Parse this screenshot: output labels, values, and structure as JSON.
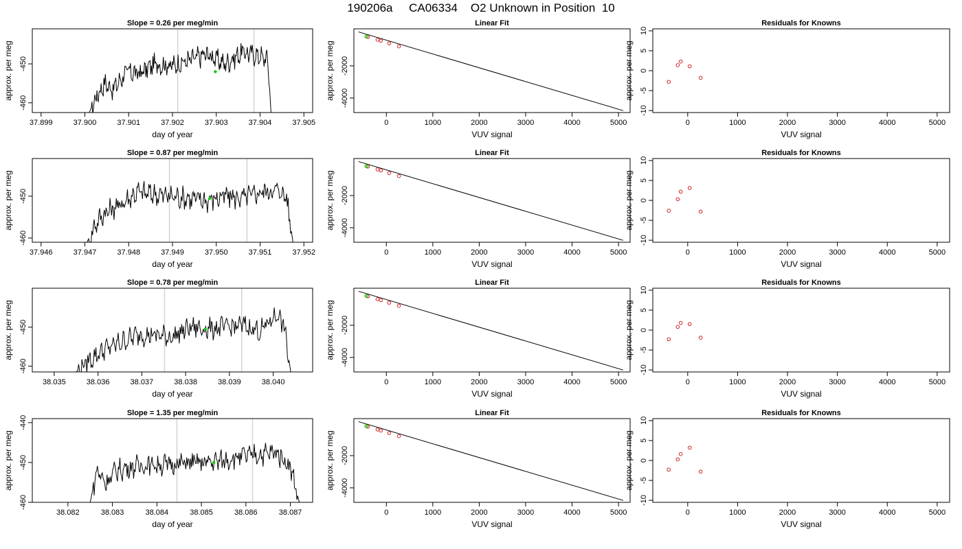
{
  "page_title": "190206a     CA06334    O2 Unknown in Position  10",
  "colors": {
    "trace": "#000000",
    "gridline": "#d3d3d3",
    "unknown_point": "#00cc00",
    "known_point": "#cc2222"
  },
  "chart_data": [
    {
      "type": "line",
      "title": "Slope =  0.26  per meg/min",
      "xlabel": "day of year",
      "ylabel": "approx. per meg",
      "xlim": [
        37.8988,
        37.9052
      ],
      "ylim": [
        -462.5,
        -441.0
      ],
      "xticks": [
        37.899,
        37.9,
        37.901,
        37.902,
        37.903,
        37.904,
        37.905
      ],
      "xtick_labels": [
        "37.899",
        "37.900",
        "37.901",
        "37.902",
        "37.903",
        "37.904",
        "37.905"
      ],
      "yticks": [
        -460,
        -450
      ],
      "ytick_labels": [
        "-460",
        "-450"
      ],
      "vlines": [
        37.90212,
        37.90386
      ],
      "series": [
        {
          "t": [
            37.9001,
            37.90028,
            37.90045,
            37.90065,
            37.90095,
            37.90125,
            37.9016,
            37.902,
            37.9024,
            37.9028,
            37.9032,
            37.9036,
            37.904,
            37.90418,
            37.90425
          ],
          "y": [
            -462.5,
            -458.0,
            -455.0,
            -456.5,
            -452.0,
            -452.5,
            -450.0,
            -450.5,
            -449.0,
            -447.5,
            -450.0,
            -447.0,
            -448.0,
            -449.0,
            -462.5
          ]
        }
      ],
      "unknown_point": {
        "x": 37.90298,
        "y": -452.0
      }
    },
    {
      "type": "line",
      "title": "Slope =  0.87  per meg/min",
      "xlabel": "day of year",
      "ylabel": "approx. per meg",
      "xlim": [
        37.9458,
        37.9522
      ],
      "ylim": [
        -461.0,
        -441.0
      ],
      "xticks": [
        37.946,
        37.947,
        37.948,
        37.949,
        37.95,
        37.951,
        37.952
      ],
      "xtick_labels": [
        "37.946",
        "37.947",
        "37.948",
        "37.949",
        "37.950",
        "37.951",
        "37.952"
      ],
      "yticks": [
        -460,
        -450
      ],
      "ytick_labels": [
        "-460",
        "-450"
      ],
      "vlines": [
        37.94893,
        37.9507
      ],
      "series": [
        {
          "t": [
            37.94705,
            37.94725,
            37.94745,
            37.9478,
            37.9482,
            37.9486,
            37.949,
            37.9494,
            37.9498,
            37.9502,
            37.9506,
            37.951,
            37.9514,
            37.9516,
            37.95175
          ],
          "y": [
            -461.0,
            -456.5,
            -454.0,
            -452.0,
            -449.0,
            -449.5,
            -450.0,
            -450.5,
            -451.0,
            -450.0,
            -450.5,
            -449.0,
            -448.5,
            -450.0,
            -461.0
          ]
        }
      ],
      "unknown_point": {
        "x": 37.94985,
        "y": -450.5
      }
    },
    {
      "type": "line",
      "title": "Slope =  0.78  per meg/min",
      "xlabel": "day of year",
      "ylabel": "approx. per meg",
      "xlim": [
        38.0345,
        38.0409
      ],
      "ylim": [
        -461.5,
        -440.0
      ],
      "xticks": [
        38.035,
        38.036,
        38.037,
        38.038,
        38.039,
        38.04
      ],
      "xtick_labels": [
        "38.035",
        "38.036",
        "38.037",
        "38.038",
        "38.039",
        "38.040"
      ],
      "yticks": [
        -460,
        -450
      ],
      "ytick_labels": [
        "-460",
        "-450"
      ],
      "vlines": [
        38.03752,
        38.03928
      ],
      "series": [
        {
          "t": [
            38.0355,
            38.0358,
            38.0361,
            38.0365,
            38.0369,
            38.0373,
            38.0377,
            38.0381,
            38.0385,
            38.0389,
            38.0393,
            38.0397,
            38.0401,
            38.04025,
            38.0404
          ],
          "y": [
            -461.5,
            -458.5,
            -456.0,
            -454.0,
            -452.0,
            -452.0,
            -452.5,
            -450.0,
            -450.5,
            -450.0,
            -449.5,
            -451.0,
            -446.5,
            -450.0,
            -461.5
          ]
        }
      ],
      "unknown_point": {
        "x": 38.03845,
        "y": -450.5
      }
    },
    {
      "type": "line",
      "title": "Slope =  1.35  per meg/min",
      "xlabel": "day of year",
      "ylabel": "approx. per meg",
      "xlim": [
        38.0812,
        38.0875
      ],
      "ylim": [
        -460.0,
        -439.0
      ],
      "xticks": [
        38.082,
        38.083,
        38.084,
        38.085,
        38.086,
        38.087
      ],
      "xtick_labels": [
        "38.082",
        "38.083",
        "38.084",
        "38.085",
        "38.086",
        "38.087"
      ],
      "yticks": [
        -460,
        -450,
        -440
      ],
      "ytick_labels": [
        "-460",
        "-450",
        "-440"
      ],
      "vlines": [
        38.08445,
        38.08615
      ],
      "series": [
        {
          "t": [
            38.0825,
            38.08265,
            38.08285,
            38.0831,
            38.0835,
            38.0839,
            38.0843,
            38.0847,
            38.0851,
            38.0855,
            38.0859,
            38.0863,
            38.0867,
            38.087,
            38.0872
          ],
          "y": [
            -460.0,
            -452.0,
            -455.0,
            -452.0,
            -451.0,
            -450.5,
            -450.5,
            -450.0,
            -450.0,
            -449.5,
            -448.5,
            -448.0,
            -447.5,
            -451.0,
            -460.0
          ]
        }
      ],
      "unknown_point": {
        "x": 38.08528,
        "y": -450.0
      }
    },
    {
      "type": "scatter",
      "title": "Linear Fit",
      "xlabel": "VUV signal",
      "ylabel": "approx. per meg",
      "xlim": [
        -700,
        5250
      ],
      "ylim": [
        -4900,
        300
      ],
      "xticks": [
        0,
        1000,
        2000,
        3000,
        4000,
        5000
      ],
      "xtick_labels": [
        "0",
        "1000",
        "2000",
        "3000",
        "4000",
        "5000"
      ],
      "yticks": [
        -4000,
        -2000
      ],
      "ytick_labels": [
        "-4000",
        "-2000"
      ],
      "fit_line": {
        "x": [
          -600,
          5100
        ],
        "y": [
          110,
          -4780
        ]
      },
      "known_points": {
        "x": [
          -400,
          -190,
          -120,
          60,
          270
        ],
        "y": [
          -200,
          -380,
          -440,
          -600,
          -790
        ]
      },
      "unknown_point": {
        "x": -430,
        "y": -170
      }
    },
    {
      "type": "scatter",
      "title": "Linear Fit",
      "xlabel": "VUV signal",
      "ylabel": "approx. per meg",
      "xlim": [
        -700,
        5250
      ],
      "ylim": [
        -4900,
        300
      ],
      "xticks": [
        0,
        1000,
        2000,
        3000,
        4000,
        5000
      ],
      "xtick_labels": [
        "0",
        "1000",
        "2000",
        "3000",
        "4000",
        "5000"
      ],
      "yticks": [
        -4000,
        -2000
      ],
      "ytick_labels": [
        "-4000",
        "-2000"
      ],
      "fit_line": {
        "x": [
          -600,
          5100
        ],
        "y": [
          110,
          -4780
        ]
      },
      "known_points": {
        "x": [
          -400,
          -190,
          -120,
          60,
          270
        ],
        "y": [
          -200,
          -380,
          -440,
          -600,
          -790
        ]
      },
      "unknown_point": {
        "x": -430,
        "y": -170
      }
    },
    {
      "type": "scatter",
      "title": "Linear Fit",
      "xlabel": "VUV signal",
      "ylabel": "approx. per meg",
      "xlim": [
        -700,
        5250
      ],
      "ylim": [
        -4900,
        300
      ],
      "xticks": [
        0,
        1000,
        2000,
        3000,
        4000,
        5000
      ],
      "xtick_labels": [
        "0",
        "1000",
        "2000",
        "3000",
        "4000",
        "5000"
      ],
      "yticks": [
        -4000,
        -2000
      ],
      "ytick_labels": [
        "-4000",
        "-2000"
      ],
      "fit_line": {
        "x": [
          -600,
          5100
        ],
        "y": [
          110,
          -4780
        ]
      },
      "known_points": {
        "x": [
          -400,
          -190,
          -120,
          60,
          270
        ],
        "y": [
          -200,
          -380,
          -440,
          -600,
          -790
        ]
      },
      "unknown_point": {
        "x": -430,
        "y": -170
      }
    },
    {
      "type": "scatter",
      "title": "Linear Fit",
      "xlabel": "VUV signal",
      "ylabel": "approx. per meg",
      "xlim": [
        -700,
        5250
      ],
      "ylim": [
        -4900,
        300
      ],
      "xticks": [
        0,
        1000,
        2000,
        3000,
        4000,
        5000
      ],
      "xtick_labels": [
        "0",
        "1000",
        "2000",
        "3000",
        "4000",
        "5000"
      ],
      "yticks": [
        -4000,
        -2000
      ],
      "ytick_labels": [
        "-4000",
        "-2000"
      ],
      "fit_line": {
        "x": [
          -600,
          5100
        ],
        "y": [
          110,
          -4780
        ]
      },
      "known_points": {
        "x": [
          -400,
          -190,
          -120,
          60,
          270
        ],
        "y": [
          -200,
          -380,
          -440,
          -600,
          -790
        ]
      },
      "unknown_point": {
        "x": -430,
        "y": -170
      }
    },
    {
      "type": "scatter",
      "title": "Residuals for Knowns",
      "xlabel": "VUV signal",
      "ylabel": "approx. per meg",
      "xlim": [
        -700,
        5250
      ],
      "ylim": [
        -10.5,
        10.5
      ],
      "xticks": [
        0,
        1000,
        2000,
        3000,
        4000,
        5000
      ],
      "xtick_labels": [
        "0",
        "1000",
        "2000",
        "3000",
        "4000",
        "5000"
      ],
      "yticks": [
        -10,
        -5,
        0,
        5,
        10
      ],
      "ytick_labels": [
        "-10",
        "-5",
        "0",
        "5",
        "10"
      ],
      "points": {
        "x": [
          -380,
          -200,
          -140,
          40,
          260
        ],
        "y": [
          -2.8,
          1.4,
          2.3,
          1.1,
          -1.8
        ]
      }
    },
    {
      "type": "scatter",
      "title": "Residuals for Knowns",
      "xlabel": "VUV signal",
      "ylabel": "approx. per meg",
      "xlim": [
        -700,
        5250
      ],
      "ylim": [
        -10.5,
        10.5
      ],
      "xticks": [
        0,
        1000,
        2000,
        3000,
        4000,
        5000
      ],
      "xtick_labels": [
        "0",
        "1000",
        "2000",
        "3000",
        "4000",
        "5000"
      ],
      "yticks": [
        -10,
        -5,
        0,
        5,
        10
      ],
      "ytick_labels": [
        "-10",
        "-5",
        "0",
        "5",
        "10"
      ],
      "points": {
        "x": [
          -380,
          -200,
          -140,
          40,
          260
        ],
        "y": [
          -2.6,
          0.3,
          2.2,
          3.1,
          -2.8
        ]
      }
    },
    {
      "type": "scatter",
      "title": "Residuals for Knowns",
      "xlabel": "VUV signal",
      "ylabel": "approx. per meg",
      "xlim": [
        -700,
        5250
      ],
      "ylim": [
        -10.5,
        10.5
      ],
      "xticks": [
        0,
        1000,
        2000,
        3000,
        4000,
        5000
      ],
      "xtick_labels": [
        "0",
        "1000",
        "2000",
        "3000",
        "4000",
        "5000"
      ],
      "yticks": [
        -10,
        -5,
        0,
        5,
        10
      ],
      "ytick_labels": [
        "-10",
        "-5",
        "0",
        "5",
        "10"
      ],
      "points": {
        "x": [
          -380,
          -200,
          -140,
          40,
          260
        ],
        "y": [
          -2.3,
          0.8,
          1.8,
          1.5,
          -1.9
        ]
      }
    },
    {
      "type": "scatter",
      "title": "Residuals for Knowns",
      "xlabel": "VUV signal",
      "ylabel": "approx. per meg",
      "xlim": [
        -700,
        5250
      ],
      "ylim": [
        -10.5,
        10.5
      ],
      "xticks": [
        0,
        1000,
        2000,
        3000,
        4000,
        5000
      ],
      "xtick_labels": [
        "0",
        "1000",
        "2000",
        "3000",
        "4000",
        "5000"
      ],
      "yticks": [
        -10,
        -5,
        0,
        5,
        10
      ],
      "ytick_labels": [
        "-10",
        "-5",
        "0",
        "5",
        "10"
      ],
      "points": {
        "x": [
          -380,
          -200,
          -140,
          40,
          260
        ],
        "y": [
          -2.3,
          0.3,
          1.6,
          3.2,
          -2.8
        ]
      }
    }
  ]
}
